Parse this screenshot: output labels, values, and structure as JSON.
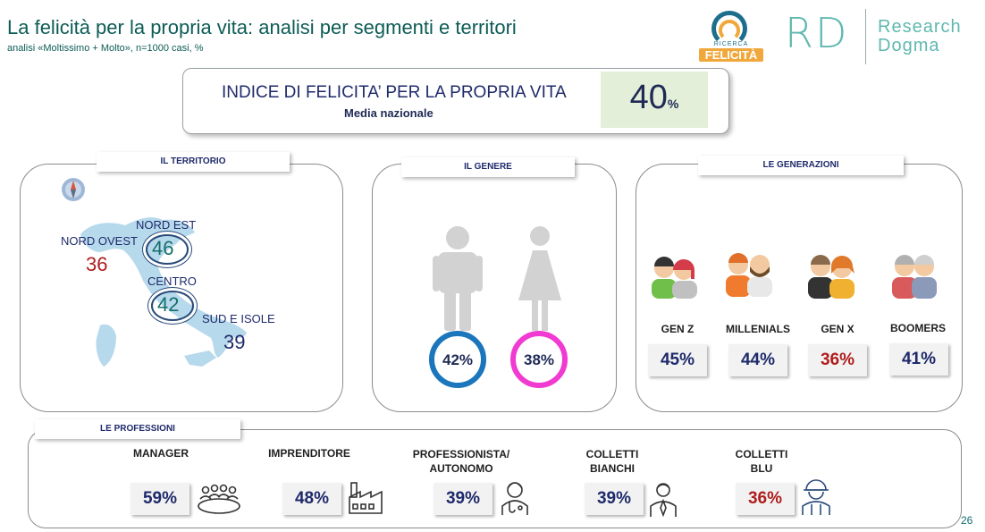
{
  "header": {
    "title": "La felicità per la propria vita: analisi per segmenti e territori",
    "subtitle": "analisi «Moltissimo + Molto», n=1000 casi, %"
  },
  "logos": {
    "felicita_small": "RICERCA",
    "felicita_big": "FELICITÀ",
    "rd": "RD",
    "research_line1": "Research",
    "research_line2": "Dogma"
  },
  "index": {
    "title": "INDICE DI FELICITA’ PER LA PROPRIA VITA",
    "sub": "Media nazionale",
    "value": "40",
    "unit": "%"
  },
  "territory": {
    "tab": "IL TERRITORIO",
    "nord_ovest": {
      "label": "NORD OVEST",
      "value": "36"
    },
    "nord_est": {
      "label": "NORD EST",
      "value": "46"
    },
    "centro": {
      "label": "CENTRO",
      "value": "42"
    },
    "sud": {
      "label": "SUD E ISOLE",
      "value": "39"
    }
  },
  "gender": {
    "tab": "IL GENERE",
    "male": "42%",
    "female": "38%"
  },
  "generations": {
    "tab": "LE GENERAZIONI",
    "items": [
      {
        "label": "GEN Z",
        "value": "45%"
      },
      {
        "label": "MILLENIALS",
        "value": "44%"
      },
      {
        "label": "GEN X",
        "value": "36%"
      },
      {
        "label": "BOOMERS",
        "value": "41%"
      }
    ]
  },
  "professions": {
    "tab": "LE PROFESSIONI",
    "items": [
      {
        "label": "MANAGER",
        "value": "59%"
      },
      {
        "label": "IMPRENDITORE",
        "value": "48%"
      },
      {
        "label": "PROFESSIONISTA/ AUTONOMO",
        "value": "39%"
      },
      {
        "label": "COLLETTI BIANCHI",
        "value": "39%"
      },
      {
        "label": "COLLETTI BLU",
        "value": "36%"
      }
    ]
  },
  "colors": {
    "teal": "#0d5c56",
    "navy": "#1f2a6b",
    "red": "#b01c1c",
    "male_ring": "#1b76bc",
    "female_ring": "#f03ad2",
    "index_bg": "#e3efd9",
    "map": "#b7d9ec"
  },
  "page_number": "26"
}
